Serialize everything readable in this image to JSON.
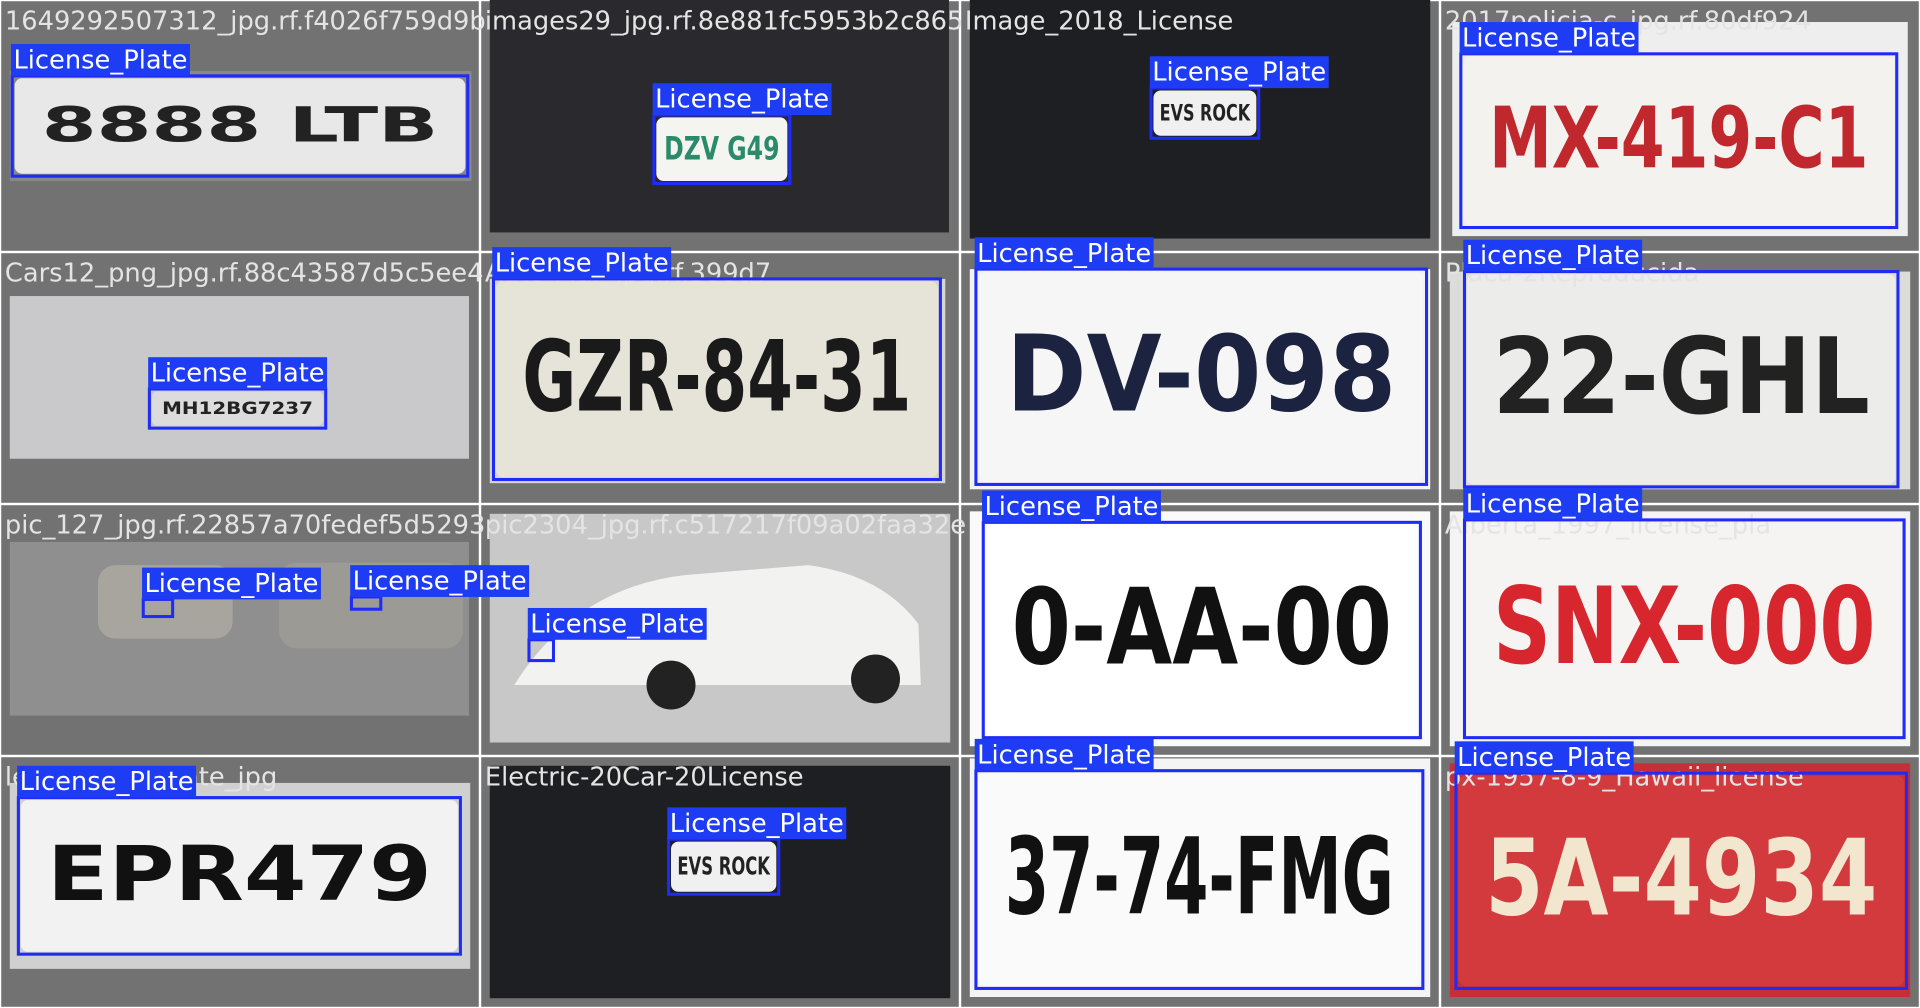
{
  "tiles": [
    {
      "filename": "1649292507312_jpg.rf.f4026f759d9b",
      "plate": "8888 LTB",
      "labels": [
        "License_Plate"
      ]
    },
    {
      "filename": "images29_jpg.rf.8e881fc5953b2c865",
      "plate": "DZV G49",
      "labels": [
        "License_Plate"
      ]
    },
    {
      "filename": "Image_2018_License",
      "plate": "EVS ROCK",
      "labels": [
        "License_Plate"
      ]
    },
    {
      "filename": "2017policia-c_jpg.rf.80df924",
      "plate": "MX-419-C1",
      "labels": [
        "License_Plate"
      ]
    },
    {
      "filename": "Cars12_png_jpg.rf.88c43587d5c5ee4",
      "plate": "MH12BG7237",
      "labels": [
        "License_Plate"
      ]
    },
    {
      "filename": "Auto-Mar_jpg.rf.399d7",
      "plate": "GZR-84-31",
      "labels": [
        "License_Plate"
      ]
    },
    {
      "plate": "DV-098",
      "labels": [
        "License_Plate"
      ]
    },
    {
      "filename": "Placa-2Reproducida",
      "plate": "22-GHL",
      "labels": [
        "License_Plate"
      ]
    },
    {
      "filename": "pic_127_jpg.rf.22857a70fedef5d5293",
      "labels": [
        "License_Plate",
        "License_Plate"
      ]
    },
    {
      "filename": "pic2304_jpg.rf.c517217f09a02faa32e",
      "labels": [
        "License_Plate"
      ]
    },
    {
      "plate": "0-AA-00",
      "labels": [
        "License_Plate"
      ]
    },
    {
      "filename": "Alberta_1997_license_pla",
      "plate": "SNX-000",
      "labels": [
        "License_Plate"
      ]
    },
    {
      "filename": "len_license_plate_jpg",
      "plate": "EPR479",
      "labels": [
        "License_Plate"
      ]
    },
    {
      "filename": "Electric-20Car-20License",
      "plate": "EVS ROCK",
      "labels": [
        "License_Plate"
      ]
    },
    {
      "plate": "37-74-FMG",
      "labels": [
        "License_Plate"
      ]
    },
    {
      "filename": "px-1957-8-9_Hawaii_license",
      "plate": "5A-4934",
      "labels": [
        "License_Plate"
      ]
    }
  ]
}
